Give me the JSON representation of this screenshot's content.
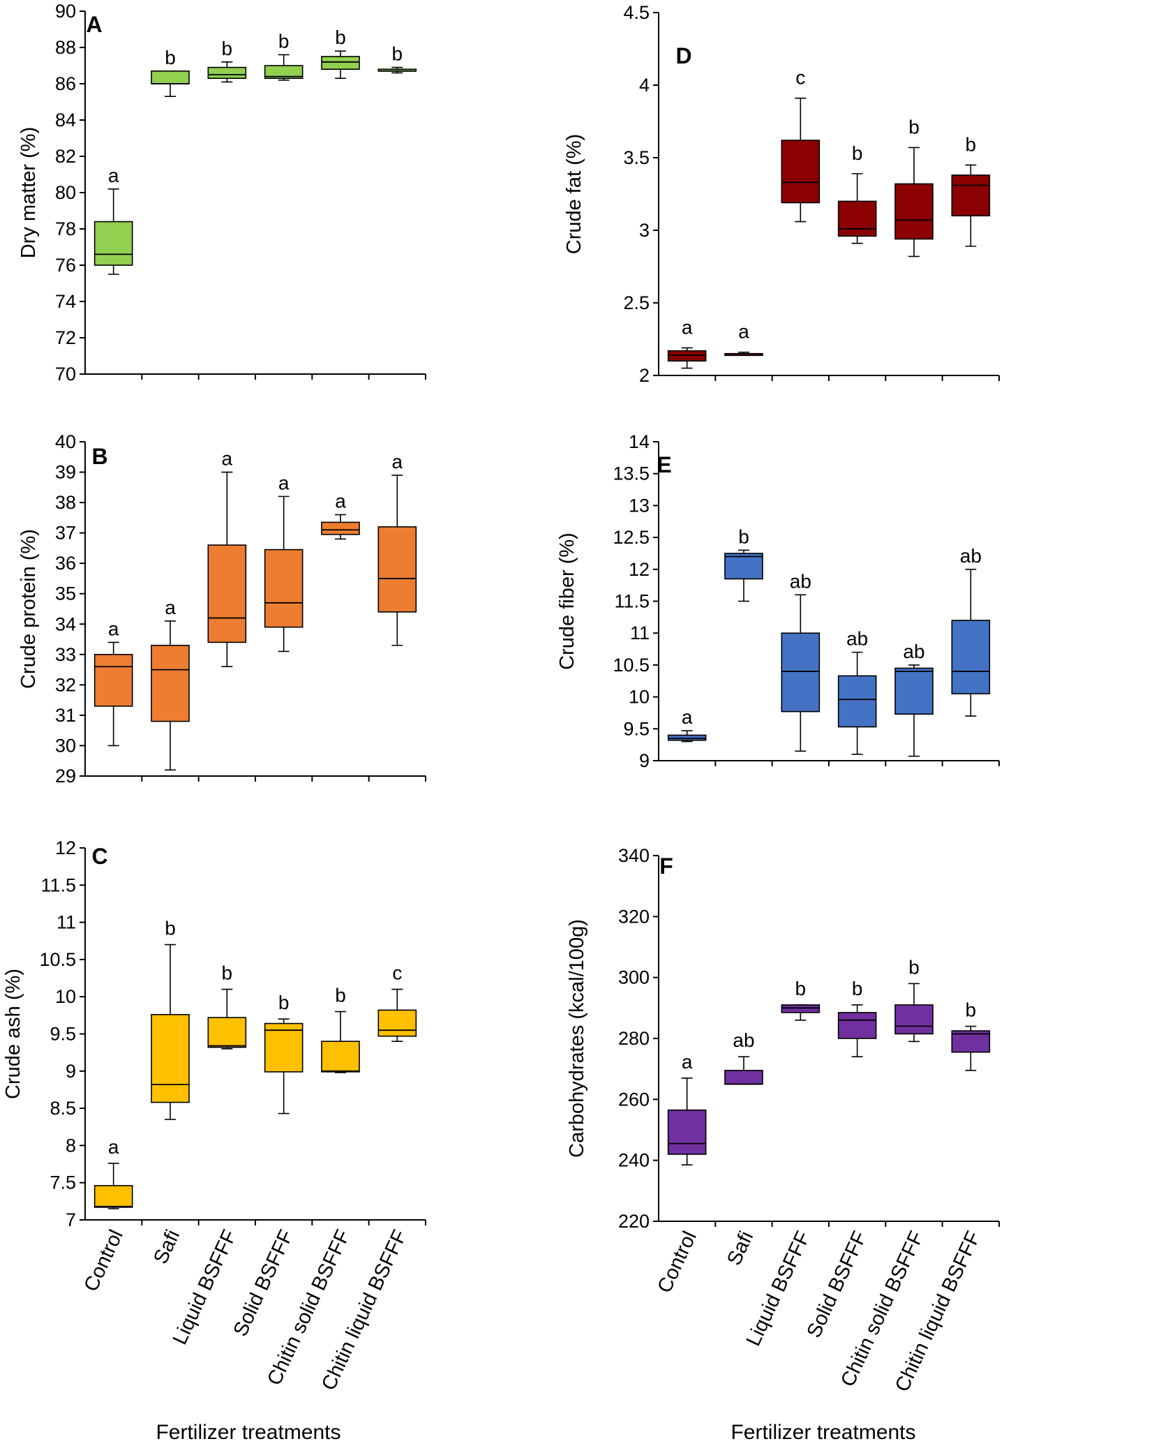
{
  "x_axis_title": "Fertilizer treatments",
  "categories": [
    "Control",
    "Safi",
    "Liquid BSFFF",
    "Solid BSFFF",
    "Chitin solid BSFFF",
    "Chitin liquid BSFFF"
  ],
  "chart_data": [
    {
      "panel": "A",
      "type": "boxplot",
      "ylabel": "Dry matter (%)",
      "color": "#92D050",
      "ylim": [
        70,
        90
      ],
      "yticks": [
        "70",
        "72",
        "74",
        "76",
        "78",
        "80",
        "82",
        "84",
        "86",
        "88",
        "90"
      ],
      "categories": [
        "Control",
        "Safi",
        "Liquid BSFFF",
        "Solid BSFFF",
        "Chitin solid BSFFF",
        "Chitin liquid BSFFF"
      ],
      "boxes": [
        {
          "min": 75.5,
          "q1": 76.0,
          "median": 76.6,
          "q3": 78.4,
          "max": 80.2,
          "label": "a"
        },
        {
          "min": 85.3,
          "q1": 86.0,
          "median": 86.0,
          "q3": 86.7,
          "max": 86.7,
          "label": "b"
        },
        {
          "min": 86.1,
          "q1": 86.3,
          "median": 86.5,
          "q3": 86.9,
          "max": 87.2,
          "label": "b"
        },
        {
          "min": 86.2,
          "q1": 86.3,
          "median": 86.4,
          "q3": 87.0,
          "max": 87.6,
          "label": "b"
        },
        {
          "min": 86.3,
          "q1": 86.8,
          "median": 87.2,
          "q3": 87.5,
          "max": 87.8,
          "label": "b"
        },
        {
          "min": 86.6,
          "q1": 86.7,
          "median": 86.7,
          "q3": 86.8,
          "max": 86.9,
          "label": "b"
        }
      ]
    },
    {
      "panel": "B",
      "type": "boxplot",
      "ylabel": "Crude protein (%)",
      "color": "#ED7D31",
      "ylim": [
        29,
        40
      ],
      "yticks": [
        "29",
        "30",
        "31",
        "32",
        "33",
        "34",
        "35",
        "36",
        "37",
        "38",
        "39",
        "40"
      ],
      "categories": [
        "Control",
        "Safi",
        "Liquid BSFFF",
        "Solid BSFFF",
        "Chitin solid BSFFF",
        "Chitin liquid BSFFF"
      ],
      "boxes": [
        {
          "min": 30.0,
          "q1": 31.3,
          "median": 32.6,
          "q3": 33.0,
          "max": 33.4,
          "label": "a"
        },
        {
          "min": 29.2,
          "q1": 30.8,
          "median": 32.5,
          "q3": 33.3,
          "max": 34.1,
          "label": "a"
        },
        {
          "min": 32.6,
          "q1": 33.4,
          "median": 34.2,
          "q3": 36.6,
          "max": 39.0,
          "label": "a"
        },
        {
          "min": 33.1,
          "q1": 33.9,
          "median": 34.7,
          "q3": 36.45,
          "max": 38.2,
          "label": "a"
        },
        {
          "min": 36.8,
          "q1": 36.95,
          "median": 37.1,
          "q3": 37.35,
          "max": 37.6,
          "label": "a"
        },
        {
          "min": 33.3,
          "q1": 34.4,
          "median": 35.5,
          "q3": 37.2,
          "max": 38.9,
          "label": "a"
        }
      ]
    },
    {
      "panel": "C",
      "type": "boxplot",
      "ylabel": "Crude ash (%)",
      "color": "#FFC000",
      "ylim": [
        7,
        12
      ],
      "yticks": [
        "7",
        "7.5",
        "8",
        "8.5",
        "9",
        "9.5",
        "10",
        "10.5",
        "11",
        "11.5",
        "12"
      ],
      "categories": [
        "Control",
        "Safi",
        "Liquid BSFFF",
        "Solid BSFFF",
        "Chitin solid BSFFF",
        "Chitin liquid BSFFF"
      ],
      "boxes": [
        {
          "min": 7.15,
          "q1": 7.17,
          "median": 7.18,
          "q3": 7.46,
          "max": 7.76,
          "label": "a"
        },
        {
          "min": 8.35,
          "q1": 8.58,
          "median": 8.82,
          "q3": 9.76,
          "max": 10.7,
          "label": "b"
        },
        {
          "min": 9.3,
          "q1": 9.32,
          "median": 9.34,
          "q3": 9.72,
          "max": 10.1,
          "label": "b"
        },
        {
          "min": 8.43,
          "q1": 8.99,
          "median": 9.55,
          "q3": 9.64,
          "max": 9.7,
          "label": "b"
        },
        {
          "min": 8.98,
          "q1": 8.99,
          "median": 9.0,
          "q3": 9.4,
          "max": 9.8,
          "label": "b"
        },
        {
          "min": 9.4,
          "q1": 9.47,
          "median": 9.55,
          "q3": 9.82,
          "max": 10.1,
          "label": "c"
        }
      ]
    },
    {
      "panel": "D",
      "type": "boxplot",
      "ylabel": "Crude fat (%)",
      "color": "#8B0000",
      "ylim": [
        2,
        4.5
      ],
      "yticks": [
        "2",
        "2.5",
        "3",
        "3.5",
        "4",
        "4.5"
      ],
      "categories": [
        "Control",
        "Safi",
        "Liquid BSFFF",
        "Solid BSFFF",
        "Chitin solid BSFFF",
        "Chitin liquid BSFFF"
      ],
      "boxes": [
        {
          "min": 2.05,
          "q1": 2.1,
          "median": 2.14,
          "q3": 2.17,
          "max": 2.19,
          "label": "a"
        },
        {
          "min": 2.14,
          "q1": 2.14,
          "median": 2.15,
          "q3": 2.15,
          "max": 2.16,
          "label": "a"
        },
        {
          "min": 3.06,
          "q1": 3.19,
          "median": 3.33,
          "q3": 3.62,
          "max": 3.91,
          "label": "c"
        },
        {
          "min": 2.91,
          "q1": 2.96,
          "median": 3.01,
          "q3": 3.2,
          "max": 3.39,
          "label": "b"
        },
        {
          "min": 2.82,
          "q1": 2.94,
          "median": 3.07,
          "q3": 3.32,
          "max": 3.57,
          "label": "b"
        },
        {
          "min": 2.89,
          "q1": 3.1,
          "median": 3.31,
          "q3": 3.38,
          "max": 3.45,
          "label": "b"
        }
      ]
    },
    {
      "panel": "E",
      "type": "boxplot",
      "ylabel": "Crude fiber (%)",
      "color": "#4472C4",
      "ylim": [
        9,
        14
      ],
      "yticks": [
        "9",
        "9.5",
        "10",
        "10.5",
        "11",
        "11.5",
        "12",
        "12.5",
        "13",
        "13.5",
        "14"
      ],
      "categories": [
        "Control",
        "Safi",
        "Liquid BSFFF",
        "Solid BSFFF",
        "Chitin solid BSFFF",
        "Chitin liquid BSFFF"
      ],
      "boxes": [
        {
          "min": 9.3,
          "q1": 9.32,
          "median": 9.35,
          "q3": 9.4,
          "max": 9.47,
          "label": "a"
        },
        {
          "min": 11.5,
          "q1": 11.85,
          "median": 12.2,
          "q3": 12.25,
          "max": 12.3,
          "label": "b"
        },
        {
          "min": 9.15,
          "q1": 9.77,
          "median": 10.4,
          "q3": 11.0,
          "max": 11.6,
          "label": "ab"
        },
        {
          "min": 9.1,
          "q1": 9.53,
          "median": 9.96,
          "q3": 10.33,
          "max": 10.7,
          "label": "ab"
        },
        {
          "min": 9.07,
          "q1": 9.73,
          "median": 10.4,
          "q3": 10.45,
          "max": 10.5,
          "label": "ab"
        },
        {
          "min": 9.7,
          "q1": 10.05,
          "median": 10.4,
          "q3": 11.2,
          "max": 12.0,
          "label": "ab"
        }
      ]
    },
    {
      "panel": "F",
      "type": "boxplot",
      "ylabel": "Carbohydrates  (kcal/100g)",
      "color": "#7030A0",
      "ylim": [
        220,
        340
      ],
      "yticks": [
        "220",
        "240",
        "260",
        "280",
        "300",
        "320",
        "340"
      ],
      "categories": [
        "Control",
        "Safi",
        "Liquid BSFFF",
        "Solid BSFFF",
        "Chitin solid BSFFF",
        "Chitin liquid BSFFF"
      ],
      "boxes": [
        {
          "min": 238.5,
          "q1": 242.0,
          "median": 245.5,
          "q3": 256.5,
          "max": 267.0,
          "label": "a"
        },
        {
          "min": 265.0,
          "q1": 265.0,
          "median": 265.0,
          "q3": 269.5,
          "max": 274.0,
          "label": "ab"
        },
        {
          "min": 286.0,
          "q1": 288.5,
          "median": 290.0,
          "q3": 291.0,
          "max": 291.0,
          "label": "b"
        },
        {
          "min": 274.0,
          "q1": 280.0,
          "median": 286.0,
          "q3": 288.5,
          "max": 291.0,
          "label": "b"
        },
        {
          "min": 279.0,
          "q1": 281.5,
          "median": 284.0,
          "q3": 291.0,
          "max": 298.0,
          "label": "b"
        },
        {
          "min": 269.5,
          "q1": 275.5,
          "median": 281.5,
          "q3": 282.5,
          "max": 284.0,
          "label": "b"
        }
      ]
    }
  ]
}
